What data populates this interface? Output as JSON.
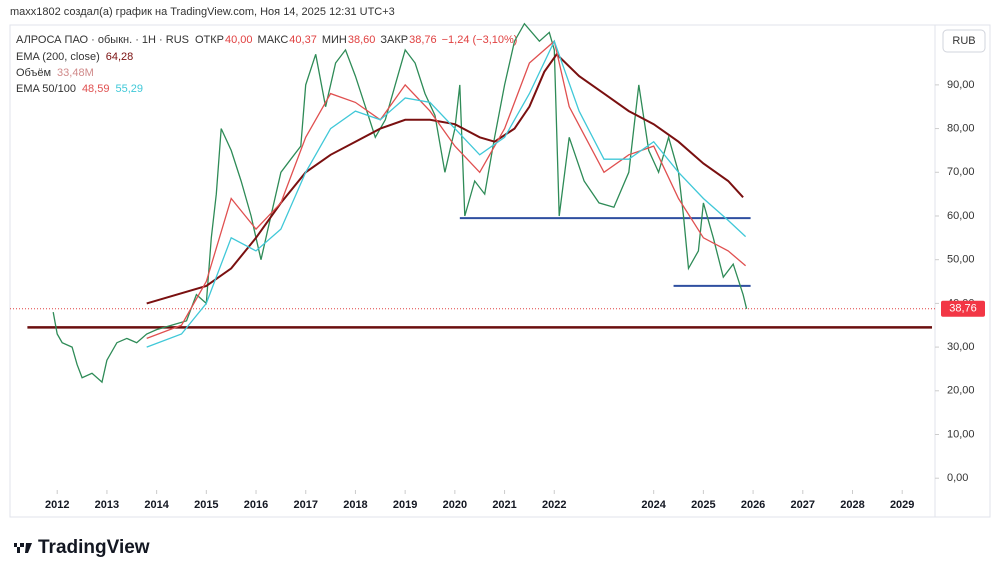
{
  "header": {
    "attribution": "maxx1802 создал(а) график на TradingView.com, Ноя 14, 2025 12:31 UTC+3",
    "brand": "TradingView"
  },
  "chart_data": {
    "type": "line",
    "symbol": "АЛРОСА ПАО · обыкн. · 1Н · RUS",
    "ohlc": [
      {
        "label": "ОТКР",
        "value": "40,00"
      },
      {
        "label": "МАКС",
        "value": "40,37"
      },
      {
        "label": "МИН",
        "value": "38,60"
      },
      {
        "label": "ЗАКР",
        "value": "38,76"
      },
      {
        "label": "",
        "value": "−1,24 (−3,10%)"
      }
    ],
    "legend": [
      {
        "label": "EMA (200, close)",
        "values": [
          "64,28"
        ],
        "colors": [
          "#7a1010"
        ]
      },
      {
        "label": "Объём",
        "values": [
          "33,48M"
        ],
        "colors": [
          "#d08a8a"
        ]
      },
      {
        "label": "EMA 50/100",
        "values": [
          "48,59",
          "55,29"
        ],
        "colors": [
          "#e05050",
          "#40c8d8"
        ]
      }
    ],
    "currency": "RUB",
    "xlim": [
      2011.05,
      2029.66
    ],
    "ylim": [
      -2.7,
      103.7
    ],
    "xticks": [
      2012,
      2013,
      2014,
      2015,
      2016,
      2017,
      2018,
      2019,
      2020,
      2021,
      2022,
      2024,
      2025,
      2026,
      2027,
      2028,
      2029
    ],
    "yticks": [
      {
        "value": 0,
        "label": "0,00"
      },
      {
        "value": 10,
        "label": "10,00"
      },
      {
        "value": 20,
        "label": "20,00"
      },
      {
        "value": 30,
        "label": "30,00"
      },
      {
        "value": 40,
        "label": "40,00"
      },
      {
        "value": 50,
        "label": "50,00"
      },
      {
        "value": 60,
        "label": "60,00"
      },
      {
        "value": 70,
        "label": "70,00"
      },
      {
        "value": 80,
        "label": "80,00"
      },
      {
        "value": 90,
        "label": "90,00"
      }
    ],
    "last_price": {
      "value": 38.76,
      "label": "38,76"
    },
    "series": [
      {
        "color": "#2e8b57",
        "x": [
          2011.92,
          2012.0,
          2012.1,
          2012.3,
          2012.4,
          2012.5,
          2012.7,
          2012.9,
          2013.0,
          2013.2,
          2013.4,
          2013.6,
          2013.8,
          2014.0,
          2014.3,
          2014.6,
          2014.8,
          2015.0,
          2015.1,
          2015.2,
          2015.3,
          2015.5,
          2015.7,
          2015.9,
          2016.0,
          2016.1,
          2016.3,
          2016.5,
          2016.7,
          2016.9,
          2017.0,
          2017.2,
          2017.4,
          2017.6,
          2017.8,
          2018.0,
          2018.2,
          2018.4,
          2018.6,
          2018.8,
          2019.0,
          2019.2,
          2019.4,
          2019.6,
          2019.8,
          2020.0,
          2020.1,
          2020.2,
          2020.4,
          2020.6,
          2020.8,
          2021.0,
          2021.2,
          2021.4,
          2021.7,
          2021.9,
          2022.0,
          2022.1,
          2022.3,
          2022.6,
          2022.9,
          2023.2,
          2023.5,
          2023.7,
          2023.9,
          2024.1,
          2024.3,
          2024.5,
          2024.6,
          2024.7,
          2024.9,
          2025.0,
          2025.2,
          2025.4,
          2025.6,
          2025.8,
          2025.87
        ],
        "values": [
          38,
          33,
          31,
          30,
          26,
          23,
          24,
          22,
          27,
          31,
          32,
          31,
          33,
          34,
          35,
          36,
          42,
          40,
          55,
          65,
          80,
          75,
          68,
          60,
          55,
          50,
          60,
          70,
          73,
          76,
          90,
          97,
          85,
          95,
          98,
          92,
          85,
          78,
          82,
          90,
          98,
          95,
          88,
          83,
          70,
          80,
          90,
          60,
          68,
          65,
          78,
          90,
          100,
          104,
          100,
          102,
          98,
          60,
          78,
          68,
          63,
          62,
          70,
          90,
          75,
          70,
          78,
          70,
          60,
          48,
          52,
          63,
          55,
          46,
          49,
          42,
          38.76
        ]
      },
      {
        "color": "#7a1010",
        "x": [
          2013.8,
          2015.0,
          2015.5,
          2016.0,
          2016.5,
          2017.0,
          2017.5,
          2018.0,
          2018.5,
          2019.0,
          2019.5,
          2020.0,
          2020.5,
          2020.8,
          2021.2,
          2021.5,
          2021.8,
          2022.05,
          2022.5,
          2023.0,
          2023.5,
          2024.0,
          2024.5,
          2025.0,
          2025.5,
          2025.8
        ],
        "values": [
          40,
          44,
          48,
          55,
          63,
          70,
          74,
          77,
          80,
          82,
          82,
          81,
          78,
          77,
          80,
          85,
          93,
          97,
          92,
          88,
          84,
          81,
          77,
          72,
          68,
          64.28
        ]
      },
      {
        "color": "#e05050",
        "x": [
          2013.8,
          2014.5,
          2015.0,
          2015.5,
          2016.0,
          2016.5,
          2017.0,
          2017.5,
          2018.0,
          2018.5,
          2019.0,
          2019.5,
          2020.0,
          2020.5,
          2021.0,
          2021.5,
          2022.0,
          2022.3,
          2023.0,
          2023.5,
          2024.0,
          2024.5,
          2025.0,
          2025.5,
          2025.85
        ],
        "values": [
          32,
          35,
          45,
          64,
          57,
          63,
          78,
          88,
          86,
          82,
          90,
          84,
          76,
          70,
          80,
          95,
          100,
          85,
          70,
          74,
          76,
          64,
          55,
          52,
          48.59
        ]
      },
      {
        "color": "#40c8d8",
        "x": [
          2013.8,
          2014.5,
          2015.0,
          2015.5,
          2016.0,
          2016.5,
          2017.0,
          2017.5,
          2018.0,
          2018.5,
          2019.0,
          2019.5,
          2020.0,
          2020.5,
          2021.0,
          2021.5,
          2022.0,
          2022.5,
          2023.0,
          2023.5,
          2024.0,
          2024.5,
          2025.0,
          2025.5,
          2025.85
        ],
        "values": [
          30,
          33,
          40,
          55,
          52,
          57,
          70,
          80,
          84,
          82,
          87,
          86,
          80,
          74,
          78,
          88,
          100,
          84,
          73,
          73,
          77,
          70,
          64,
          59,
          55.29
        ]
      }
    ],
    "levels": [
      {
        "value": 59.5,
        "x": [
          2020.1,
          2025.95
        ],
        "color": "#2f4fa0"
      },
      {
        "value": 44,
        "x": [
          2024.4,
          2025.95
        ],
        "color": "#2f4fa0"
      },
      {
        "value": 34.5,
        "x": [
          2011.4,
          2029.6
        ],
        "color": "#6b0f0f"
      }
    ]
  }
}
